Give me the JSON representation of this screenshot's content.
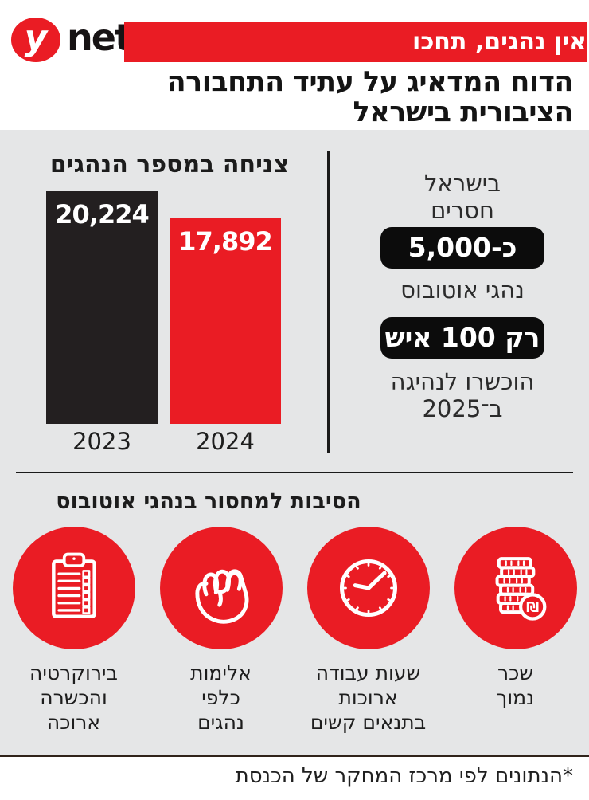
{
  "header": {
    "logo_y": "y",
    "logo_net": "net",
    "banner": "אין נהגים, תחכו",
    "headline_line1": "הדוח המדאיג על עתיד התחבורה",
    "headline_line2": "הציבורית בישראל"
  },
  "chart_data": {
    "type": "bar",
    "title": "צניחה במספר הנהגים",
    "categories": [
      "2023",
      "2024"
    ],
    "values": [
      20224,
      17892
    ],
    "value_labels": [
      "20,224",
      "17,892"
    ],
    "bar_colors": [
      "#231f20",
      "#ea1c24"
    ],
    "ylim": [
      0,
      20224
    ],
    "grid": false,
    "legend": false,
    "xlabel": "",
    "ylabel": ""
  },
  "stats": {
    "line1": "בישראל",
    "line2": "חסרים",
    "pill1": "כ-5,000",
    "line3": "נהגי אוטובוס",
    "pill2": "רק 100 איש",
    "line4": "הוכשרו לנהיגה",
    "line5": "ב־2025"
  },
  "reasons": {
    "title": "הסיבות למחסור בנהגי אוטובוס",
    "items": [
      {
        "icon": "shekel-money-icon",
        "lines": [
          "שכר",
          "נמוך"
        ]
      },
      {
        "icon": "clock-icon",
        "lines": [
          "שעות עבודה",
          "ארוכות",
          "בתנאים קשים"
        ]
      },
      {
        "icon": "fist-icon",
        "lines": [
          "אלימות",
          "כלפי",
          "נהגים"
        ]
      },
      {
        "icon": "clipboard-checklist-icon",
        "lines": [
          "בירוקרטיה",
          "והכשרה",
          "ארוכה"
        ]
      }
    ]
  },
  "footer": {
    "note": "*הנתונים לפי מרכז המחקר של הכנסת"
  },
  "colors": {
    "accent_red": "#ea1c24",
    "bar_black": "#231f20",
    "background_gray": "#e5e6e7",
    "pill_black": "#0c0c0c"
  }
}
